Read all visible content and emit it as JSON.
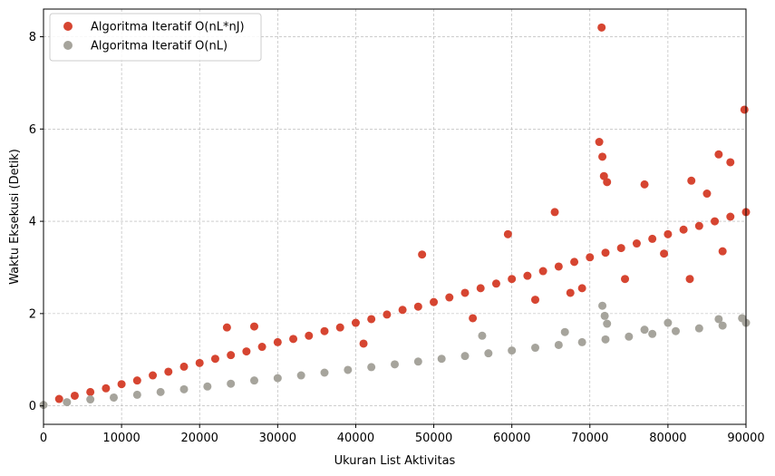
{
  "chart_data": {
    "type": "scatter",
    "title": "",
    "xlabel": "Ukuran List Aktivitas",
    "ylabel": "Waktu Eksekusi (Detik)",
    "xlim": [
      0,
      90000
    ],
    "ylim": [
      -0.4,
      8.6
    ],
    "xticks": [
      0,
      10000,
      20000,
      30000,
      40000,
      50000,
      60000,
      70000,
      80000,
      90000
    ],
    "yticks": [
      0,
      2,
      4,
      6,
      8
    ],
    "grid": true,
    "legend_position": "top-left",
    "series": [
      {
        "name": "Algoritma Iteratif O(nL*nJ)",
        "color": "#d64531",
        "points": [
          [
            2000,
            0.15
          ],
          [
            4000,
            0.22
          ],
          [
            6000,
            0.3
          ],
          [
            8000,
            0.38
          ],
          [
            10000,
            0.47
          ],
          [
            12000,
            0.55
          ],
          [
            14000,
            0.66
          ],
          [
            16000,
            0.74
          ],
          [
            18000,
            0.85
          ],
          [
            20000,
            0.93
          ],
          [
            22000,
            1.02
          ],
          [
            24000,
            1.1
          ],
          [
            26000,
            1.18
          ],
          [
            28000,
            1.28
          ],
          [
            30000,
            1.38
          ],
          [
            32000,
            1.45
          ],
          [
            34000,
            1.52
          ],
          [
            36000,
            1.62
          ],
          [
            38000,
            1.7
          ],
          [
            40000,
            1.8
          ],
          [
            42000,
            1.88
          ],
          [
            44000,
            1.98
          ],
          [
            46000,
            2.08
          ],
          [
            48000,
            2.15
          ],
          [
            50000,
            2.25
          ],
          [
            52000,
            2.35
          ],
          [
            54000,
            2.45
          ],
          [
            56000,
            2.55
          ],
          [
            58000,
            2.65
          ],
          [
            60000,
            2.75
          ],
          [
            62000,
            2.82
          ],
          [
            64000,
            2.92
          ],
          [
            66000,
            3.02
          ],
          [
            68000,
            3.12
          ],
          [
            70000,
            3.22
          ],
          [
            72000,
            3.32
          ],
          [
            74000,
            3.42
          ],
          [
            76000,
            3.52
          ],
          [
            78000,
            3.62
          ],
          [
            80000,
            3.72
          ],
          [
            82000,
            3.82
          ],
          [
            84000,
            3.9
          ],
          [
            86000,
            4.0
          ],
          [
            88000,
            4.1
          ],
          [
            90000,
            4.2
          ],
          [
            23500,
            1.7
          ],
          [
            27000,
            1.72
          ],
          [
            48500,
            3.28
          ],
          [
            59500,
            3.72
          ],
          [
            65500,
            4.2
          ],
          [
            71200,
            5.72
          ],
          [
            71600,
            5.4
          ],
          [
            71800,
            4.98
          ],
          [
            72200,
            4.85
          ],
          [
            71500,
            8.2
          ],
          [
            86500,
            5.45
          ],
          [
            88000,
            5.28
          ],
          [
            89800,
            6.42
          ],
          [
            77000,
            4.8
          ],
          [
            83000,
            4.88
          ],
          [
            69000,
            2.55
          ],
          [
            74500,
            2.75
          ],
          [
            82800,
            2.75
          ],
          [
            63000,
            2.3
          ],
          [
            41000,
            1.35
          ],
          [
            55000,
            1.9
          ],
          [
            67500,
            2.45
          ],
          [
            87000,
            3.35
          ],
          [
            79500,
            3.3
          ],
          [
            85000,
            4.6
          ]
        ]
      },
      {
        "name": "Algoritma Iteratif O(nL)",
        "color": "#a6a49c",
        "points": [
          [
            0,
            0.02
          ],
          [
            3000,
            0.08
          ],
          [
            6000,
            0.14
          ],
          [
            9000,
            0.18
          ],
          [
            12000,
            0.24
          ],
          [
            15000,
            0.3
          ],
          [
            18000,
            0.36
          ],
          [
            21000,
            0.42
          ],
          [
            24000,
            0.48
          ],
          [
            27000,
            0.55
          ],
          [
            30000,
            0.6
          ],
          [
            33000,
            0.66
          ],
          [
            36000,
            0.72
          ],
          [
            39000,
            0.78
          ],
          [
            42000,
            0.84
          ],
          [
            45000,
            0.9
          ],
          [
            48000,
            0.96
          ],
          [
            51000,
            1.02
          ],
          [
            54000,
            1.08
          ],
          [
            57000,
            1.14
          ],
          [
            60000,
            1.2
          ],
          [
            63000,
            1.26
          ],
          [
            66000,
            1.32
          ],
          [
            69000,
            1.38
          ],
          [
            72000,
            1.44
          ],
          [
            75000,
            1.5
          ],
          [
            78000,
            1.56
          ],
          [
            81000,
            1.62
          ],
          [
            84000,
            1.68
          ],
          [
            87000,
            1.74
          ],
          [
            90000,
            1.8
          ],
          [
            56200,
            1.52
          ],
          [
            66800,
            1.6
          ],
          [
            71600,
            2.17
          ],
          [
            71900,
            1.95
          ],
          [
            72200,
            1.78
          ],
          [
            80000,
            1.8
          ],
          [
            86500,
            1.88
          ],
          [
            89500,
            1.9
          ],
          [
            77000,
            1.65
          ]
        ]
      }
    ]
  }
}
